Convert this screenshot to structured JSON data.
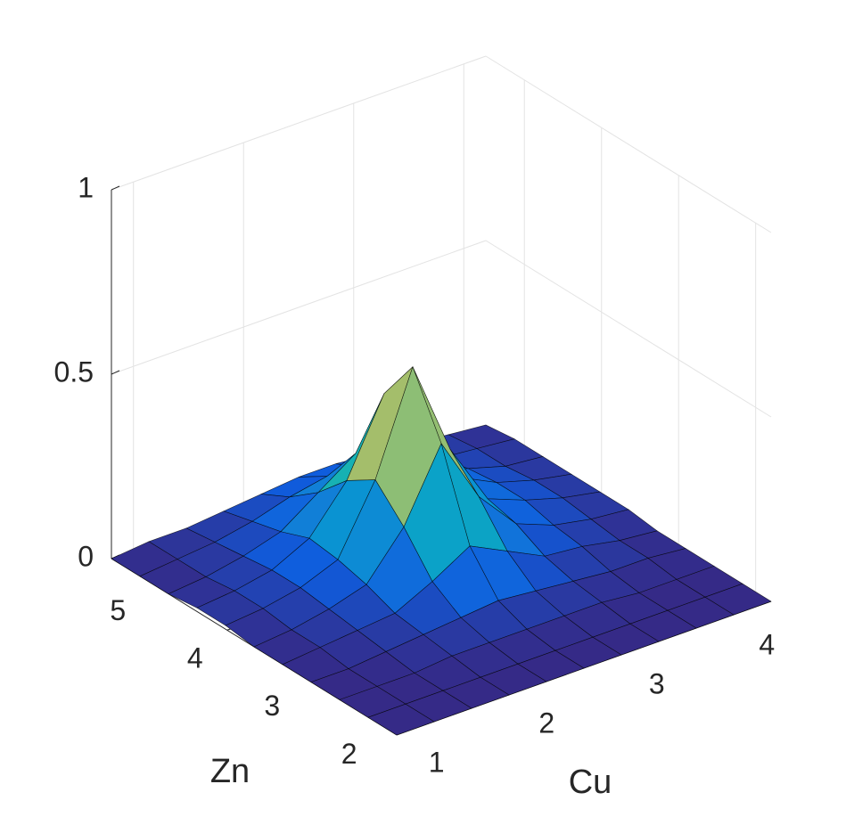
{
  "chart_data": {
    "type": "surface",
    "x_label": "Cu",
    "y_label": "Zn",
    "x": [
      0.8,
      1.14,
      1.48,
      1.82,
      2.16,
      2.5,
      2.84,
      3.18,
      3.52,
      3.86,
      4.2
    ],
    "y": [
      1.8,
      2.17,
      2.54,
      2.91,
      3.28,
      3.65,
      4.02,
      4.39,
      4.76,
      5.13,
      5.5
    ],
    "z": [
      [
        0,
        0,
        0,
        0,
        0,
        0,
        0,
        0,
        0,
        0,
        0
      ],
      [
        0,
        0,
        0,
        0,
        0,
        0,
        0,
        0,
        0,
        0,
        0
      ],
      [
        0,
        0,
        0,
        0.01,
        0.01,
        0.01,
        0.01,
        0.01,
        0,
        0,
        0
      ],
      [
        0,
        0,
        0.01,
        0.02,
        0.03,
        0.04,
        0.03,
        0.02,
        0.01,
        0.01,
        0
      ],
      [
        0,
        0.01,
        0.02,
        0.03,
        0.08,
        0.14,
        0.09,
        0.04,
        0.03,
        0.01,
        0
      ],
      [
        0,
        0.01,
        0.03,
        0.06,
        0.18,
        0.37,
        0.19,
        0.08,
        0.04,
        0.02,
        0.01
      ],
      [
        0.01,
        0.02,
        0.04,
        0.08,
        0.26,
        0.53,
        0.27,
        0.1,
        0.06,
        0.03,
        0.01
      ],
      [
        0.01,
        0.02,
        0.04,
        0.09,
        0.21,
        0.41,
        0.23,
        0.11,
        0.06,
        0.03,
        0.01
      ],
      [
        0,
        0.01,
        0.03,
        0.06,
        0.13,
        0.2,
        0.14,
        0.08,
        0.05,
        0.02,
        0.01
      ],
      [
        0,
        0.01,
        0.02,
        0.04,
        0.07,
        0.09,
        0.07,
        0.06,
        0.03,
        0.02,
        0.01
      ],
      [
        0,
        0.01,
        0.01,
        0.02,
        0.03,
        0.04,
        0.04,
        0.03,
        0.02,
        0.01,
        0
      ]
    ],
    "xlim": [
      0.8,
      4.2
    ],
    "xticks": [
      1,
      2,
      3,
      4
    ],
    "ylim": [
      1.8,
      5.5
    ],
    "yticks": [
      2,
      3,
      4,
      5
    ],
    "zlim": [
      0,
      1
    ],
    "zticks": [
      0,
      0.5,
      1
    ],
    "grid": true,
    "colormap": "parula",
    "edge_color": "#000000"
  }
}
